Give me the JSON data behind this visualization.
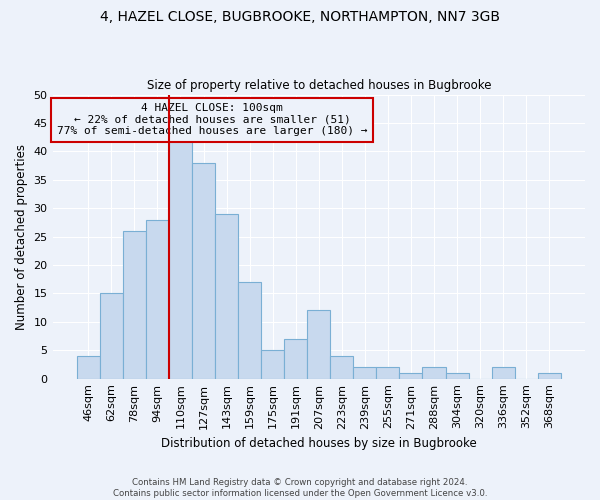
{
  "title": "4, HAZEL CLOSE, BUGBROOKE, NORTHAMPTON, NN7 3GB",
  "subtitle": "Size of property relative to detached houses in Bugbrooke",
  "xlabel": "Distribution of detached houses by size in Bugbrooke",
  "ylabel": "Number of detached properties",
  "footer_line1": "Contains HM Land Registry data © Crown copyright and database right 2024.",
  "footer_line2": "Contains public sector information licensed under the Open Government Licence v3.0.",
  "bin_labels": [
    "46sqm",
    "62sqm",
    "78sqm",
    "94sqm",
    "110sqm",
    "127sqm",
    "143sqm",
    "159sqm",
    "175sqm",
    "191sqm",
    "207sqm",
    "223sqm",
    "239sqm",
    "255sqm",
    "271sqm",
    "288sqm",
    "304sqm",
    "320sqm",
    "336sqm",
    "352sqm",
    "368sqm"
  ],
  "bin_values": [
    4,
    15,
    26,
    28,
    42,
    38,
    29,
    17,
    5,
    7,
    12,
    4,
    2,
    2,
    1,
    2,
    1,
    0,
    2,
    0,
    1
  ],
  "bar_color": "#c8d9ee",
  "bar_edge_color": "#7aafd4",
  "property_line_color": "#cc0000",
  "ylim": [
    0,
    50
  ],
  "yticks": [
    0,
    5,
    10,
    15,
    20,
    25,
    30,
    35,
    40,
    45,
    50
  ],
  "annotation_title": "4 HAZEL CLOSE: 100sqm",
  "annotation_line1": "← 22% of detached houses are smaller (51)",
  "annotation_line2": "77% of semi-detached houses are larger (180) →",
  "annotation_box_color": "#cc0000",
  "bg_color": "#edf2fa",
  "grid_color": "#ffffff"
}
